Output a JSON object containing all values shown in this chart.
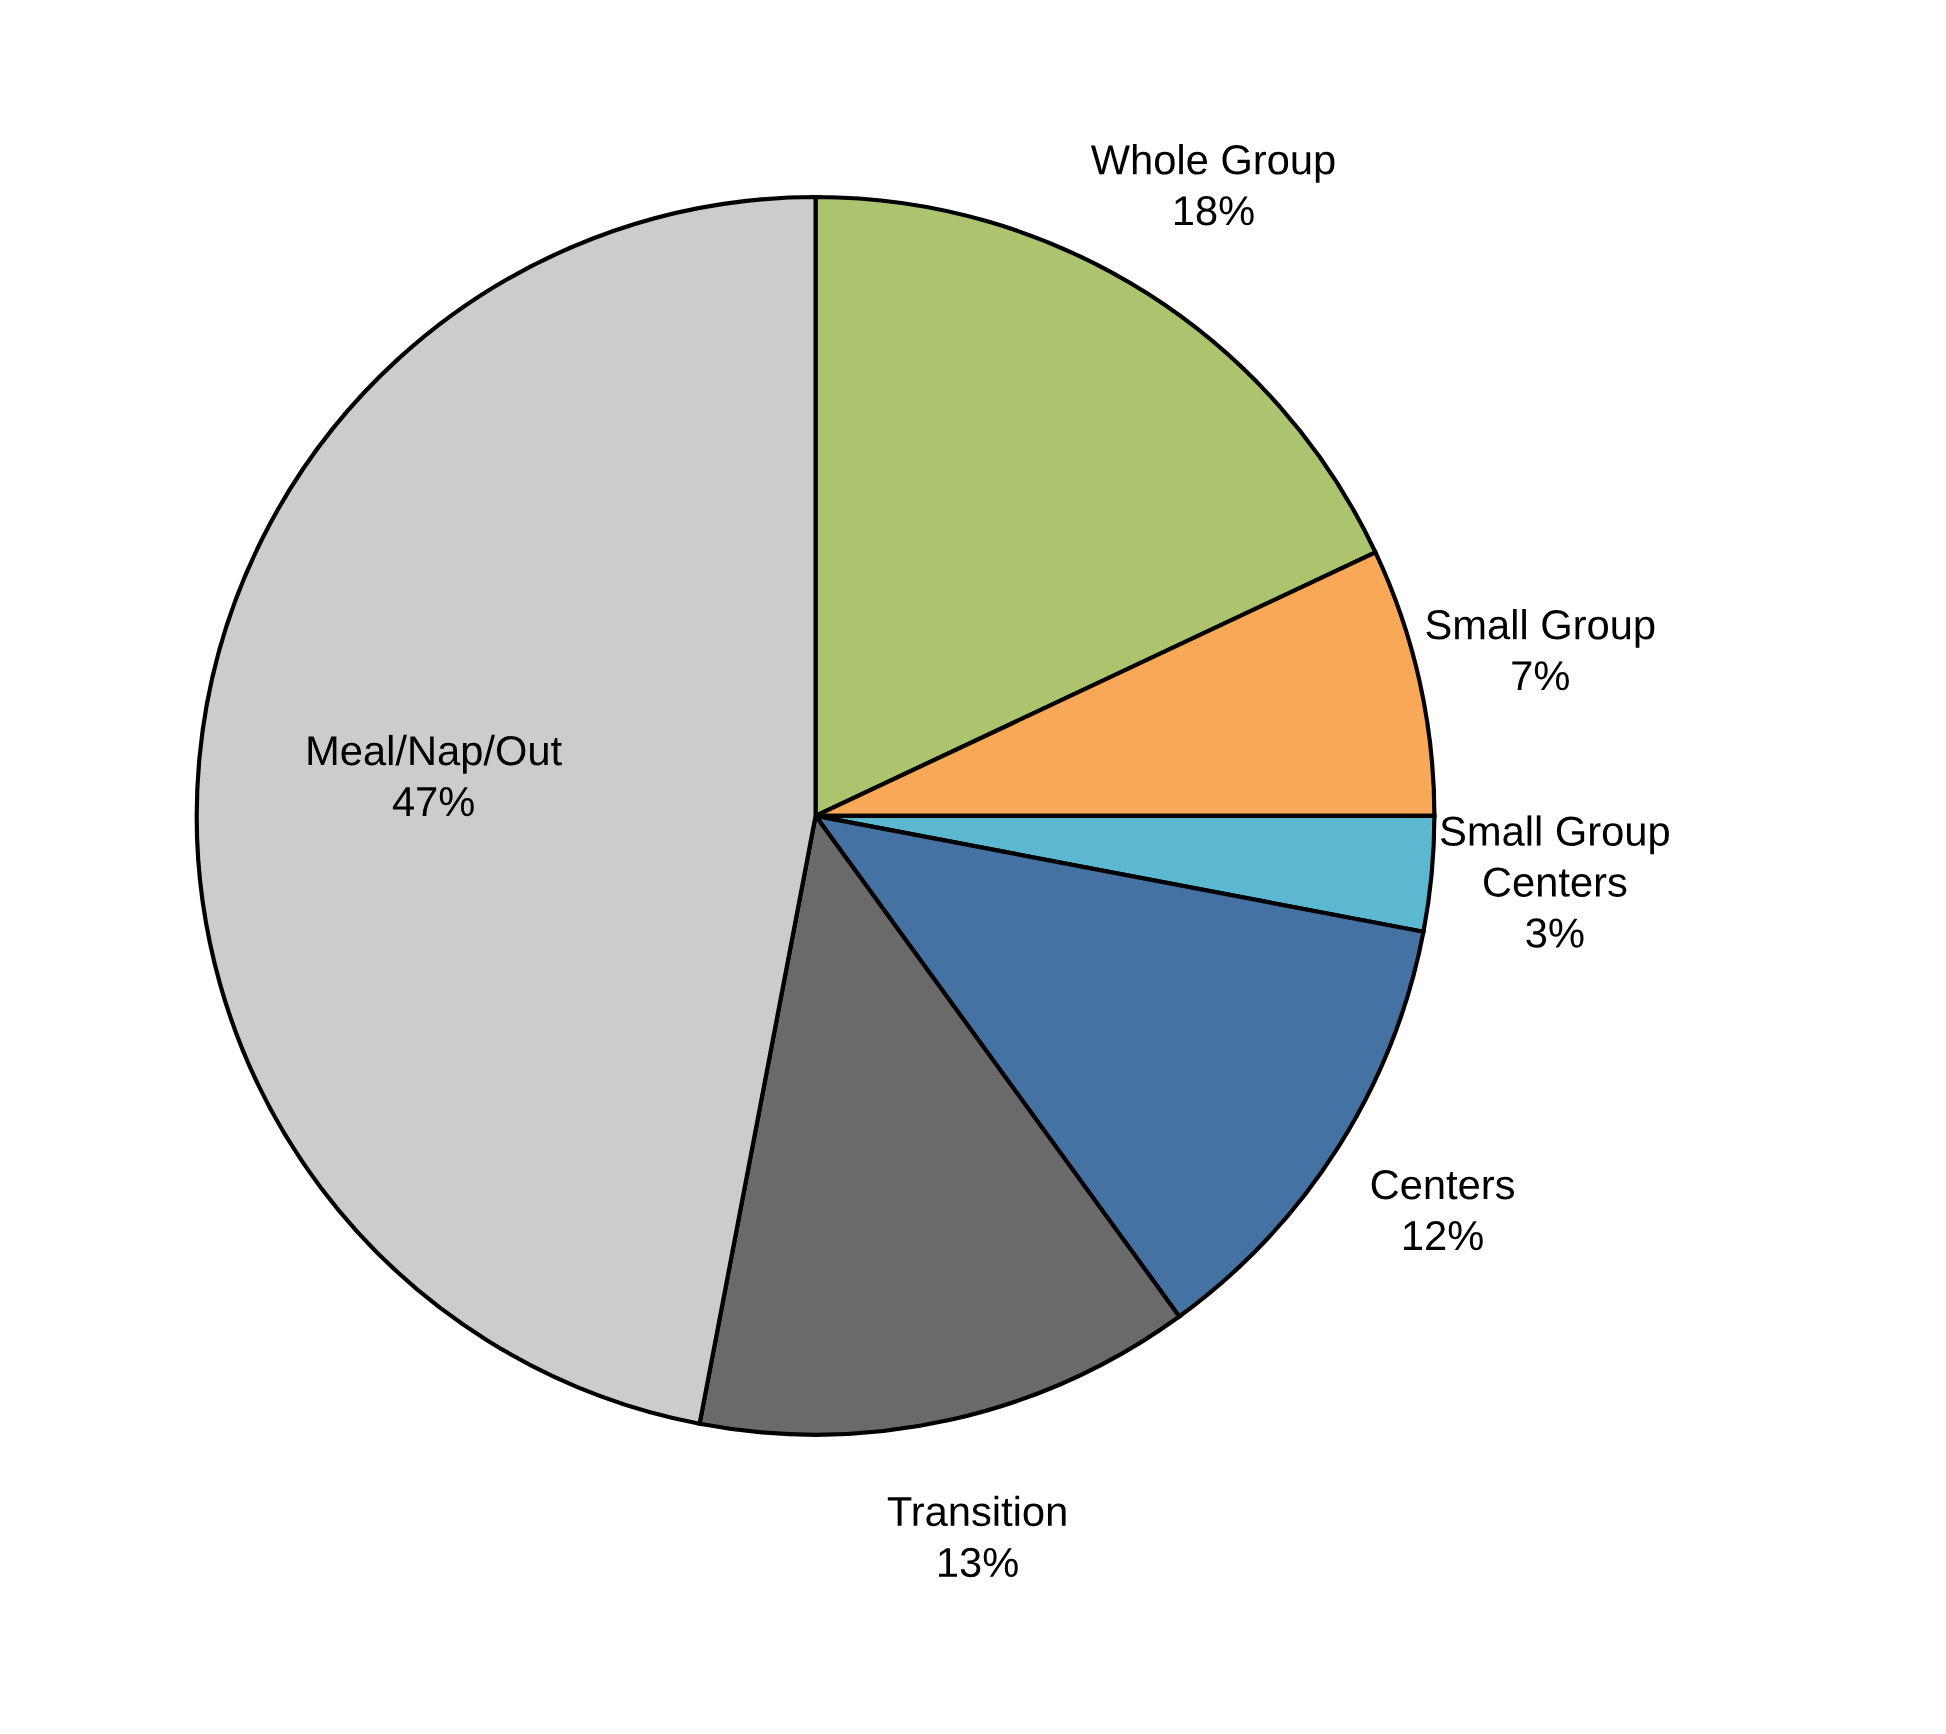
{
  "chart_data": {
    "type": "pie",
    "categories": [
      "Whole Group",
      "Small Group",
      "Small Group Centers",
      "Centers",
      "Transition",
      "Meal/Nap/Out"
    ],
    "values": [
      18,
      7,
      3,
      12,
      13,
      47
    ],
    "colors": [
      "#adc46e",
      "#f9a857",
      "#5bb8d0",
      "#4472a3",
      "#6a6a6a",
      "#cccccc"
    ],
    "value_labels": [
      "18%",
      "7%",
      "3%",
      "12%",
      "13%",
      "47%"
    ]
  }
}
